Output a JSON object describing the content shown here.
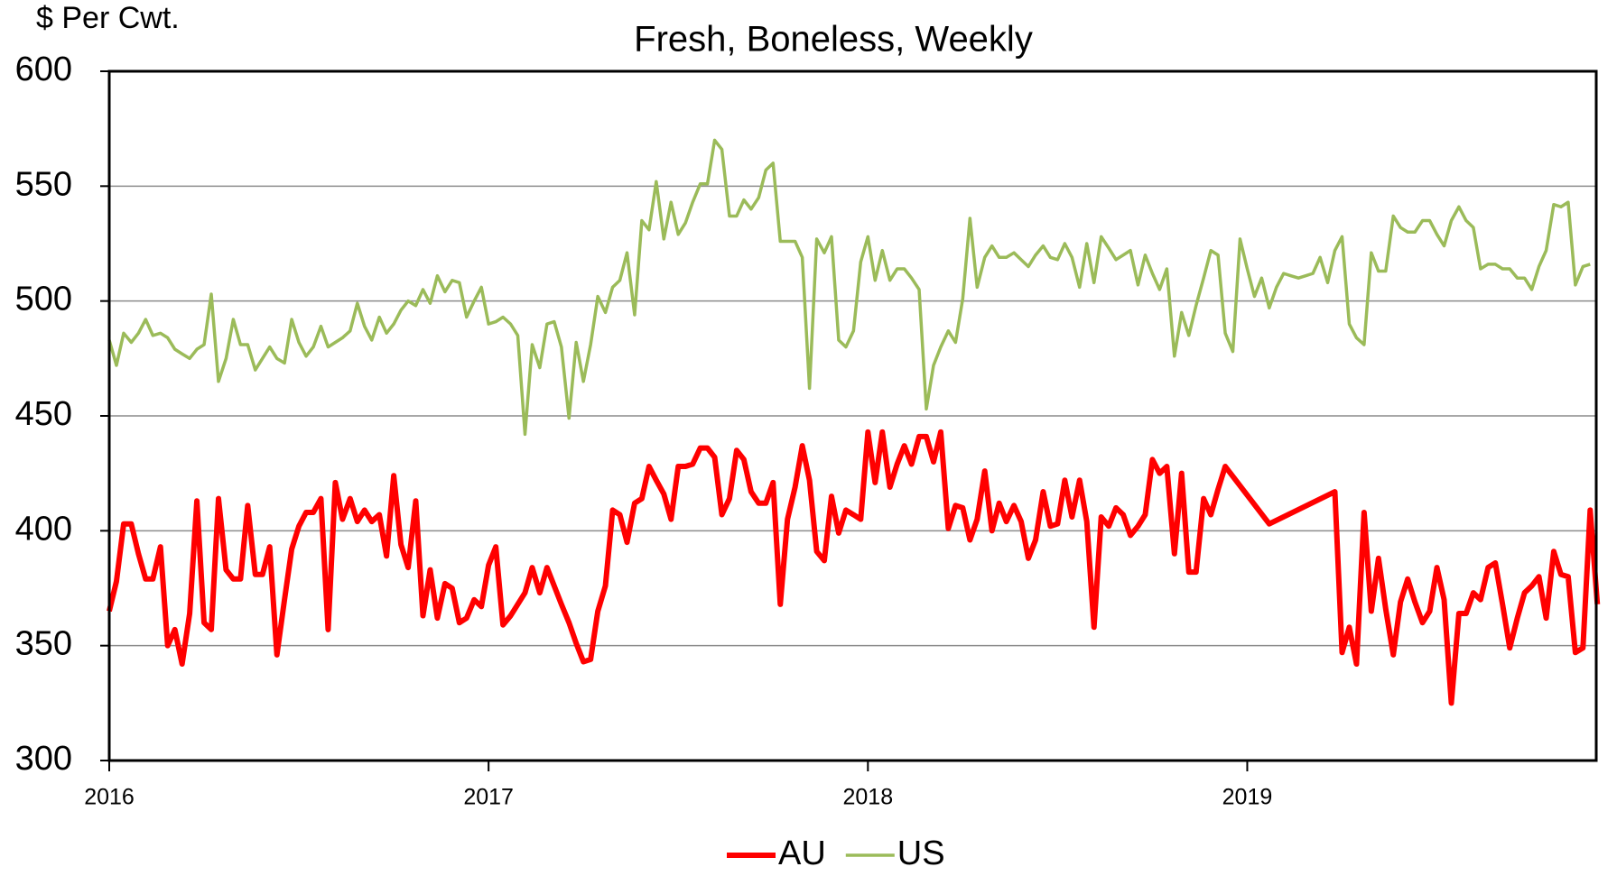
{
  "chart_data": {
    "type": "line",
    "title": "Fresh, Boneless, Weekly",
    "y_label": "$ Per Cwt.",
    "xlim": [
      2016,
      2019.92
    ],
    "xticks": [
      2016,
      2017,
      2018,
      2019
    ],
    "ylim": [
      300,
      600
    ],
    "yticks": [
      300,
      350,
      400,
      450,
      500,
      550,
      600
    ],
    "grid": true,
    "legend": "bottom",
    "series": [
      {
        "name": "AU",
        "color": "#ff0000",
        "x": [
          2016,
          2016.019,
          2016.038,
          2016.058,
          2016.077,
          2016.096,
          2016.115,
          2016.135,
          2016.154,
          2016.173,
          2016.192,
          2016.212,
          2016.231,
          2016.25,
          2016.269,
          2016.288,
          2016.308,
          2016.327,
          2016.346,
          2016.365,
          2016.385,
          2016.404,
          2016.423,
          2016.442,
          2016.462,
          2016.481,
          2016.5,
          2016.519,
          2016.538,
          2016.558,
          2016.577,
          2016.596,
          2016.615,
          2016.635,
          2016.654,
          2016.673,
          2016.692,
          2016.712,
          2016.731,
          2016.75,
          2016.769,
          2016.788,
          2016.808,
          2016.827,
          2016.846,
          2016.865,
          2016.885,
          2016.904,
          2016.923,
          2016.942,
          2016.962,
          2016.981,
          2017,
          2017.019,
          2017.038,
          2017.058,
          2017.077,
          2017.096,
          2017.115,
          2017.135,
          2017.154,
          2017.173,
          2017.192,
          2017.212,
          2017.231,
          2017.25,
          2017.269,
          2017.288,
          2017.308,
          2017.327,
          2017.346,
          2017.365,
          2017.385,
          2017.404,
          2017.423,
          2017.442,
          2017.462,
          2017.481,
          2017.5,
          2017.519,
          2017.538,
          2017.558,
          2017.577,
          2017.596,
          2017.615,
          2017.635,
          2017.654,
          2017.673,
          2017.692,
          2017.712,
          2017.731,
          2017.75,
          2017.769,
          2017.788,
          2017.808,
          2017.827,
          2017.846,
          2017.865,
          2017.885,
          2017.904,
          2017.923,
          2017.942,
          2017.962,
          2017.981,
          2018,
          2018.019,
          2018.038,
          2018.058,
          2018.077,
          2018.096,
          2018.115,
          2018.135,
          2018.154,
          2018.173,
          2018.192,
          2018.212,
          2018.231,
          2018.25,
          2018.269,
          2018.288,
          2018.308,
          2018.327,
          2018.346,
          2018.365,
          2018.385,
          2018.404,
          2018.423,
          2018.442,
          2018.462,
          2018.481,
          2018.5,
          2018.519,
          2018.538,
          2018.558,
          2018.577,
          2018.596,
          2018.615,
          2018.635,
          2018.654,
          2018.673,
          2018.692,
          2018.712,
          2018.731,
          2018.75,
          2018.769,
          2018.788,
          2018.808,
          2018.827,
          2018.846,
          2018.865,
          2018.885,
          2018.904,
          2018.923,
          2018.942,
          2019.058,
          2019.231,
          2019.25,
          2019.269,
          2019.288,
          2019.308,
          2019.327,
          2019.346,
          2019.365,
          2019.385,
          2019.404,
          2019.423,
          2019.442,
          2019.462,
          2019.481,
          2019.5,
          2019.519,
          2019.538,
          2019.558,
          2019.577,
          2019.596,
          2019.615,
          2019.635,
          2019.654,
          2019.673,
          2019.692,
          2019.712,
          2019.731,
          2019.75,
          2019.769,
          2019.788,
          2019.808,
          2019.827,
          2019.846,
          2019.865,
          2019.885,
          2019.904,
          2019.923
        ],
        "values": [
          365,
          378,
          403,
          403,
          390,
          379,
          379,
          393,
          350,
          357,
          342,
          364,
          413,
          360,
          357,
          414,
          383,
          379,
          379,
          411,
          381,
          381,
          393,
          346,
          370,
          392,
          402,
          408,
          408,
          414,
          357,
          421,
          405,
          414,
          404,
          409,
          404,
          407,
          389,
          424,
          394,
          384,
          413,
          363,
          383,
          362,
          377,
          375,
          360,
          362,
          370,
          367,
          385,
          393,
          359,
          363,
          368,
          373,
          384,
          373,
          384,
          376,
          368,
          360,
          351,
          343,
          344,
          365,
          376,
          409,
          407,
          395,
          412,
          414,
          428,
          422,
          416,
          405,
          428,
          428,
          429,
          436,
          436,
          432,
          407,
          414,
          435,
          431,
          417,
          412,
          412,
          421,
          368,
          405,
          419,
          437,
          422,
          391,
          387,
          415,
          399,
          409,
          407,
          405,
          443,
          421,
          443,
          419,
          429,
          437,
          429,
          441,
          441,
          430,
          443,
          401,
          411,
          410,
          396,
          405,
          426,
          400,
          412,
          404,
          411,
          404,
          388,
          396,
          417,
          402,
          403,
          422,
          406,
          422,
          404,
          358,
          406,
          402,
          410,
          407,
          398,
          402,
          407,
          431,
          425,
          428,
          390,
          425,
          382,
          382,
          414,
          407,
          418,
          428,
          403,
          417,
          347,
          358,
          342,
          408,
          365,
          388,
          366,
          346,
          369,
          379,
          369,
          360,
          365,
          384,
          370,
          325,
          364,
          364,
          373,
          370,
          384,
          386,
          368,
          349,
          362,
          373,
          376,
          380,
          362,
          391,
          381,
          380,
          347,
          349,
          409,
          368
        ]
      },
      {
        "name": "US",
        "color": "#9bbb59",
        "x": [
          2016,
          2016.019,
          2016.038,
          2016.058,
          2016.077,
          2016.096,
          2016.115,
          2016.135,
          2016.154,
          2016.173,
          2016.192,
          2016.212,
          2016.231,
          2016.25,
          2016.269,
          2016.288,
          2016.308,
          2016.327,
          2016.346,
          2016.365,
          2016.385,
          2016.404,
          2016.423,
          2016.442,
          2016.462,
          2016.481,
          2016.5,
          2016.519,
          2016.538,
          2016.558,
          2016.577,
          2016.596,
          2016.615,
          2016.635,
          2016.654,
          2016.673,
          2016.692,
          2016.712,
          2016.731,
          2016.75,
          2016.769,
          2016.788,
          2016.808,
          2016.827,
          2016.846,
          2016.865,
          2016.885,
          2016.904,
          2016.923,
          2016.942,
          2016.962,
          2016.981,
          2017,
          2017.019,
          2017.038,
          2017.058,
          2017.077,
          2017.096,
          2017.115,
          2017.135,
          2017.154,
          2017.173,
          2017.192,
          2017.212,
          2017.231,
          2017.25,
          2017.269,
          2017.288,
          2017.308,
          2017.327,
          2017.346,
          2017.365,
          2017.385,
          2017.404,
          2017.423,
          2017.442,
          2017.462,
          2017.481,
          2017.5,
          2017.519,
          2017.538,
          2017.558,
          2017.577,
          2017.596,
          2017.615,
          2017.635,
          2017.654,
          2017.673,
          2017.692,
          2017.712,
          2017.731,
          2017.75,
          2017.769,
          2017.788,
          2017.808,
          2017.827,
          2017.846,
          2017.865,
          2017.885,
          2017.904,
          2017.923,
          2017.942,
          2017.962,
          2017.981,
          2018,
          2018.019,
          2018.038,
          2018.058,
          2018.077,
          2018.096,
          2018.115,
          2018.135,
          2018.154,
          2018.173,
          2018.192,
          2018.212,
          2018.231,
          2018.25,
          2018.269,
          2018.288,
          2018.308,
          2018.327,
          2018.346,
          2018.365,
          2018.385,
          2018.404,
          2018.423,
          2018.442,
          2018.462,
          2018.481,
          2018.5,
          2018.519,
          2018.538,
          2018.558,
          2018.577,
          2018.596,
          2018.615,
          2018.635,
          2018.654,
          2018.673,
          2018.692,
          2018.712,
          2018.731,
          2018.75,
          2018.769,
          2018.788,
          2018.808,
          2018.827,
          2018.846,
          2018.865,
          2018.885,
          2018.904,
          2018.923,
          2018.942,
          2018.962,
          2018.981,
          2019,
          2019.019,
          2019.038,
          2019.058,
          2019.077,
          2019.096,
          2019.115,
          2019.135,
          2019.154,
          2019.173,
          2019.192,
          2019.212,
          2019.231,
          2019.25,
          2019.269,
          2019.288,
          2019.308,
          2019.327,
          2019.346,
          2019.365,
          2019.385,
          2019.404,
          2019.423,
          2019.442,
          2019.462,
          2019.481,
          2019.5,
          2019.519,
          2019.538,
          2019.558,
          2019.577,
          2019.596,
          2019.615,
          2019.635,
          2019.654,
          2019.673,
          2019.692,
          2019.712,
          2019.731,
          2019.75,
          2019.769,
          2019.788,
          2019.808,
          2019.827,
          2019.846,
          2019.865,
          2019.885,
          2019.904
        ],
        "values": [
          483,
          472,
          486,
          482,
          486,
          492,
          485,
          486,
          484,
          479,
          477,
          475,
          479,
          481,
          503,
          465,
          475,
          492,
          481,
          481,
          470,
          475,
          480,
          475,
          473,
          492,
          482,
          476,
          480,
          489,
          480,
          482,
          484,
          487,
          499,
          489,
          483,
          493,
          486,
          490,
          496,
          500,
          498,
          505,
          499,
          511,
          504,
          509,
          508,
          493,
          500,
          506,
          490,
          491,
          493,
          490,
          485,
          442,
          481,
          471,
          490,
          491,
          480,
          449,
          482,
          465,
          481,
          502,
          495,
          506,
          509,
          521,
          494,
          535,
          531,
          552,
          527,
          543,
          529,
          534,
          543,
          551,
          551,
          570,
          566,
          537,
          537,
          544,
          540,
          545,
          557,
          560,
          526,
          526,
          526,
          519,
          462,
          527,
          521,
          528,
          483,
          480,
          487,
          517,
          528,
          509,
          522,
          509,
          514,
          514,
          510,
          505,
          453,
          472,
          480,
          487,
          482,
          501,
          536,
          506,
          519,
          524,
          519,
          519,
          521,
          518,
          515,
          520,
          524,
          519,
          518,
          525,
          519,
          506,
          525,
          508,
          528,
          523,
          518,
          520,
          522,
          507,
          520,
          512,
          505,
          514,
          476,
          495,
          485,
          498,
          510,
          522,
          520,
          486,
          478,
          527,
          514,
          502,
          510,
          497,
          506,
          512,
          511,
          510,
          511,
          512,
          519,
          508,
          522,
          528,
          490,
          484,
          481,
          521,
          513,
          513,
          537,
          532,
          530,
          530,
          535,
          535,
          529,
          524,
          535,
          541,
          535,
          532,
          514,
          516,
          516,
          514,
          514,
          510,
          510,
          505,
          515,
          522,
          542,
          541,
          543,
          507,
          515,
          516
        ]
      }
    ]
  }
}
